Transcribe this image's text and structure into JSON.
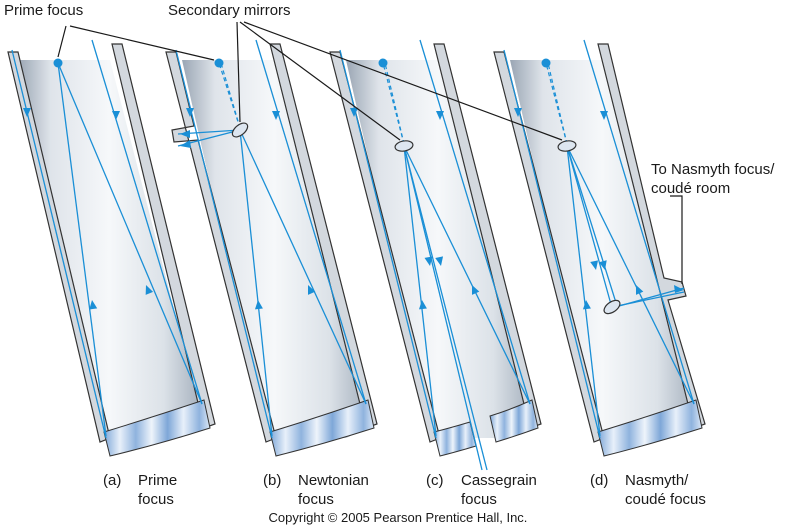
{
  "labels": {
    "prime_focus": "Prime focus",
    "secondary_mirrors": "Secondary mirrors",
    "nasmyth_line1": "To Nasmyth focus/",
    "nasmyth_line2": "coudé room"
  },
  "captions": [
    {
      "tag": "(a)",
      "line1": "Prime",
      "line2": "focus"
    },
    {
      "tag": "(b)",
      "line1": "Newtonian",
      "line2": "focus"
    },
    {
      "tag": "(c)",
      "line1": "Cassegrain",
      "line2": "focus"
    },
    {
      "tag": "(d)",
      "line1": "Nasmyth/",
      "line2": "coudé focus"
    }
  ],
  "copyright": "Copyright © 2005 Pearson Prentice Hall, Inc.",
  "colors": {
    "ray": "#1a8fd6",
    "tube_fill_light": "#f4f6f9",
    "tube_fill_dark": "#bcc6d2",
    "tube_wall": "#d3d8de",
    "outline": "#333333"
  }
}
